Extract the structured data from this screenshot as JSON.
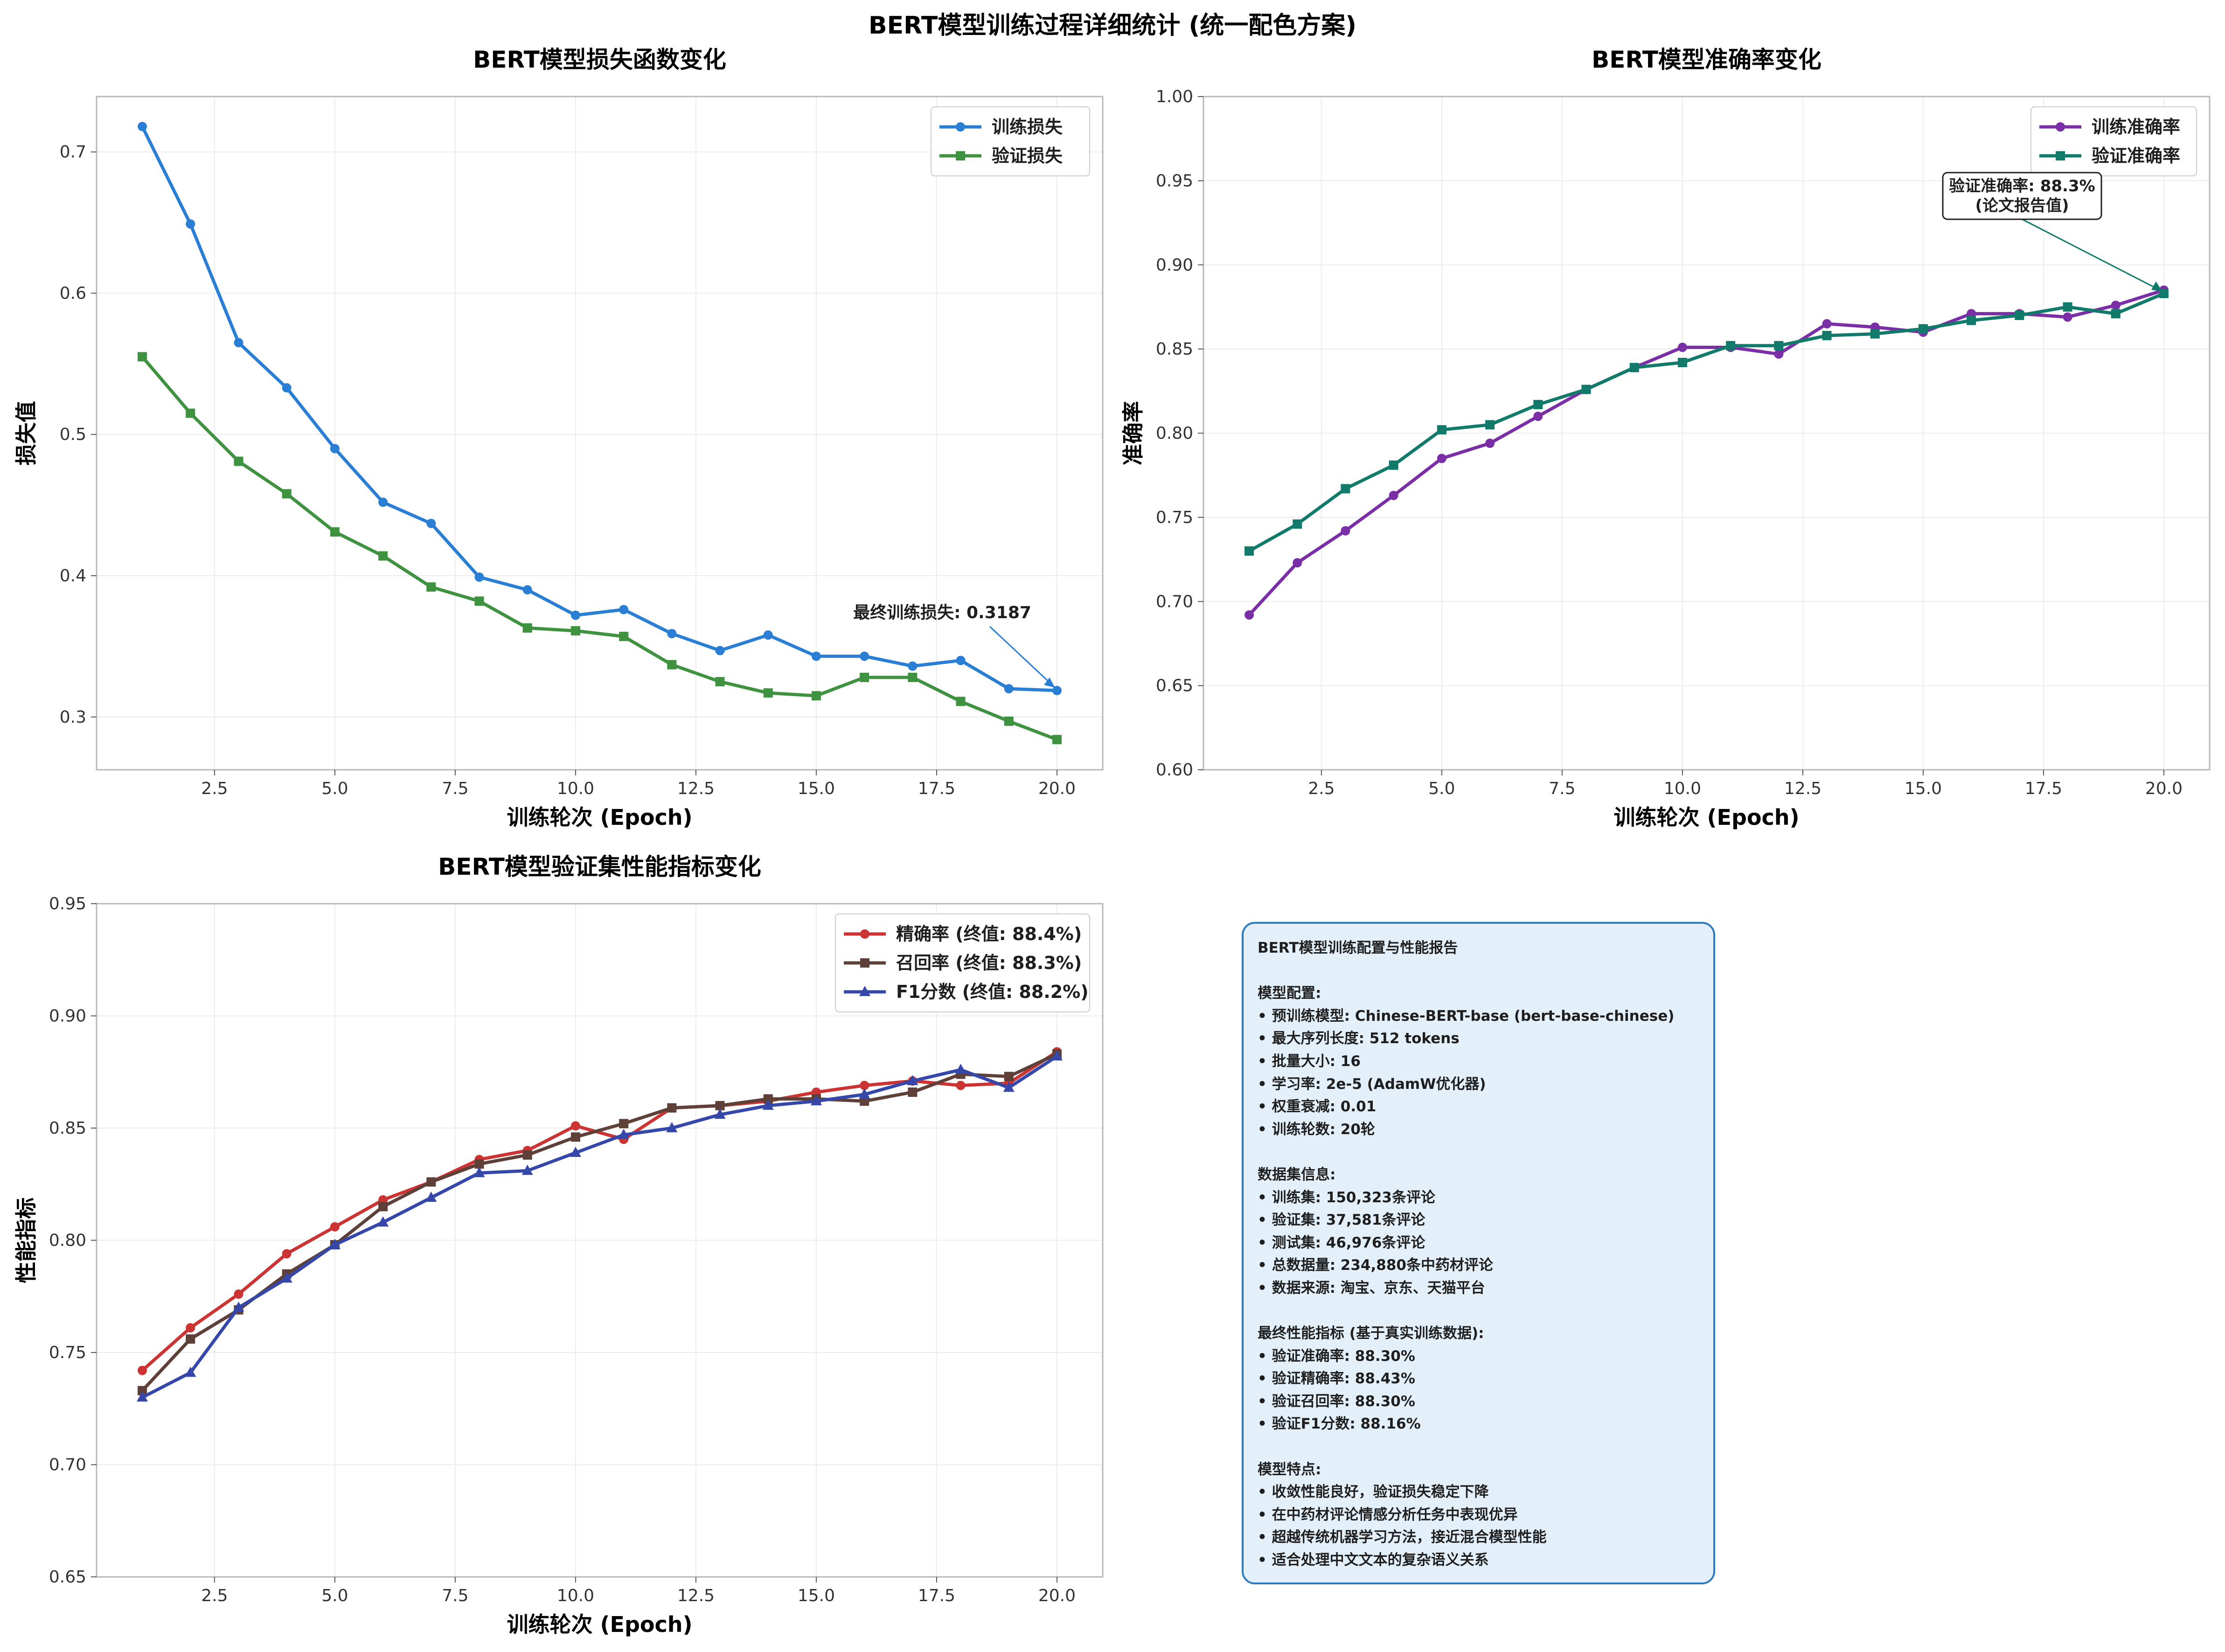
{
  "figure": {
    "title": "BERT模型训练过程详细统计 (统一配色方案)"
  },
  "colors": {
    "train_loss": "#2a7fd4",
    "val_loss": "#3f923f",
    "train_acc": "#7b2fa6",
    "val_acc": "#127a6b",
    "precision": "#cc3333",
    "recall": "#5e4038",
    "f1": "#3547a8"
  },
  "chart_data": [
    {
      "type": "line",
      "title": "BERT模型损失函数变化",
      "xlabel": "训练轮次 (Epoch)",
      "ylabel": "损失值",
      "x": [
        1,
        2,
        3,
        4,
        5,
        6,
        7,
        8,
        9,
        10,
        11,
        12,
        13,
        14,
        15,
        16,
        17,
        18,
        19,
        20
      ],
      "xlim": [
        0.05,
        20.95
      ],
      "ylim": [
        0.2626,
        0.7392
      ],
      "xticks": [
        2.5,
        5.0,
        7.5,
        10.0,
        12.5,
        15.0,
        17.5,
        20.0
      ],
      "yticks": [
        0.3,
        0.4,
        0.5,
        0.6,
        0.7
      ],
      "grid": true,
      "legend": "top-right",
      "series": [
        {
          "name": "训练损失",
          "marker": "circle",
          "color": "#2a7fd4",
          "values": [
            0.718,
            0.649,
            0.565,
            0.533,
            0.49,
            0.452,
            0.437,
            0.399,
            0.39,
            0.372,
            0.376,
            0.359,
            0.347,
            0.358,
            0.343,
            0.343,
            0.336,
            0.34,
            0.32,
            0.3187
          ]
        },
        {
          "name": "验证损失",
          "marker": "square",
          "color": "#3f923f",
          "values": [
            0.555,
            0.515,
            0.481,
            0.458,
            0.431,
            0.414,
            0.392,
            0.382,
            0.363,
            0.361,
            0.357,
            0.337,
            0.325,
            0.317,
            0.315,
            0.328,
            0.328,
            0.311,
            0.297,
            0.284
          ]
        }
      ],
      "annotation": {
        "text": "最终训练损失: 0.3187",
        "x": 20,
        "y": 0.3187
      }
    },
    {
      "type": "line",
      "title": "BERT模型准确率变化",
      "xlabel": "训练轮次 (Epoch)",
      "ylabel": "准确率",
      "x": [
        1,
        2,
        3,
        4,
        5,
        6,
        7,
        8,
        9,
        10,
        11,
        12,
        13,
        14,
        15,
        16,
        17,
        18,
        19,
        20
      ],
      "xlim": [
        0.05,
        20.95
      ],
      "ylim": [
        0.6,
        1.0
      ],
      "xticks": [
        2.5,
        5.0,
        7.5,
        10.0,
        12.5,
        15.0,
        17.5,
        20.0
      ],
      "yticks": [
        0.6,
        0.65,
        0.7,
        0.75,
        0.8,
        0.85,
        0.9,
        0.95,
        1.0
      ],
      "grid": true,
      "legend": "top-right",
      "series": [
        {
          "name": "训练准确率",
          "marker": "circle",
          "color": "#7b2fa6",
          "values": [
            0.692,
            0.723,
            0.742,
            0.763,
            0.785,
            0.794,
            0.81,
            0.826,
            0.839,
            0.851,
            0.851,
            0.847,
            0.865,
            0.863,
            0.86,
            0.871,
            0.871,
            0.869,
            0.876,
            0.885
          ]
        },
        {
          "name": "验证准确率",
          "marker": "square",
          "color": "#127a6b",
          "values": [
            0.73,
            0.746,
            0.767,
            0.781,
            0.802,
            0.805,
            0.817,
            0.826,
            0.839,
            0.842,
            0.852,
            0.852,
            0.858,
            0.859,
            0.862,
            0.867,
            0.87,
            0.875,
            0.871,
            0.883
          ]
        }
      ],
      "annotation": {
        "text": "验证准确率: 88.3%\n(论文报告值)",
        "x": 20,
        "y": 0.883
      }
    },
    {
      "type": "line",
      "title": "BERT模型验证集性能指标变化",
      "xlabel": "训练轮次 (Epoch)",
      "ylabel": "性能指标",
      "x": [
        1,
        2,
        3,
        4,
        5,
        6,
        7,
        8,
        9,
        10,
        11,
        12,
        13,
        14,
        15,
        16,
        17,
        18,
        19,
        20
      ],
      "xlim": [
        0.05,
        20.95
      ],
      "ylim": [
        0.65,
        0.95
      ],
      "xticks": [
        2.5,
        5.0,
        7.5,
        10.0,
        12.5,
        15.0,
        17.5,
        20.0
      ],
      "yticks": [
        0.65,
        0.7,
        0.75,
        0.8,
        0.85,
        0.9,
        0.95
      ],
      "grid": true,
      "legend": "top-right",
      "series": [
        {
          "name": "精确率 (终值: 88.4%)",
          "marker": "circle",
          "color": "#cc3333",
          "values": [
            0.742,
            0.761,
            0.776,
            0.794,
            0.806,
            0.818,
            0.826,
            0.836,
            0.84,
            0.851,
            0.845,
            0.859,
            0.86,
            0.862,
            0.866,
            0.869,
            0.871,
            0.869,
            0.87,
            0.884
          ]
        },
        {
          "name": "召回率 (终值: 88.3%)",
          "marker": "square",
          "color": "#5e4038",
          "values": [
            0.733,
            0.756,
            0.769,
            0.785,
            0.798,
            0.815,
            0.826,
            0.834,
            0.838,
            0.846,
            0.852,
            0.859,
            0.86,
            0.863,
            0.863,
            0.862,
            0.866,
            0.874,
            0.873,
            0.883
          ]
        },
        {
          "name": "F1分数 (终值: 88.2%)",
          "marker": "triangle",
          "color": "#3547a8",
          "values": [
            0.73,
            0.741,
            0.77,
            0.783,
            0.798,
            0.808,
            0.819,
            0.83,
            0.831,
            0.839,
            0.847,
            0.85,
            0.856,
            0.86,
            0.862,
            0.865,
            0.871,
            0.876,
            0.868,
            0.882
          ]
        }
      ]
    }
  ],
  "info_box": {
    "lines": [
      "BERT模型训练配置与性能报告",
      "",
      "模型配置:",
      "• 预训练模型: Chinese-BERT-base (bert-base-chinese)",
      "• 最大序列长度: 512 tokens",
      "• 批量大小: 16",
      "• 学习率: 2e-5 (AdamW优化器)",
      "• 权重衰减: 0.01",
      "• 训练轮数: 20轮",
      "",
      "数据集信息:",
      "• 训练集: 150,323条评论",
      "• 验证集: 37,581条评论",
      "• 测试集: 46,976条评论",
      "• 总数据量: 234,880条中药材评论",
      "• 数据来源: 淘宝、京东、天猫平台",
      "",
      "最终性能指标 (基于真实训练数据):",
      "• 验证准确率: 88.30%",
      "• 验证精确率: 88.43%",
      "• 验证召回率: 88.30%",
      "• 验证F1分数: 88.16%",
      "",
      "模型特点:",
      "• 收敛性能良好，验证损失稳定下降",
      "• 在中药材评论情感分析任务中表现优异",
      "• 超越传统机器学习方法，接近混合模型性能",
      "• 适合处理中文文本的复杂语义关系"
    ]
  }
}
